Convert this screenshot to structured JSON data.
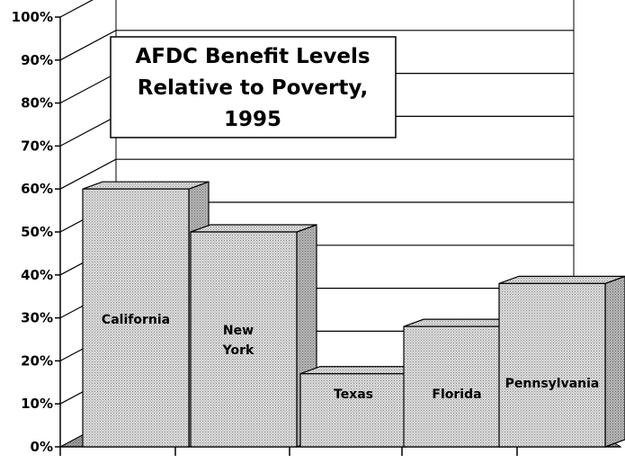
{
  "chart_data": {
    "type": "bar",
    "title_lines": [
      "AFDC Benefit Levels",
      "Relative to Poverty,",
      "1995"
    ],
    "categories": [
      "California",
      "New York",
      "Texas",
      "Florida",
      "Pennsylvania"
    ],
    "category_label_lines": [
      [
        "California"
      ],
      [
        "New",
        "York"
      ],
      [
        "Texas"
      ],
      [
        "Florida"
      ],
      [
        "Pennsylvania"
      ]
    ],
    "values": [
      60,
      50,
      17,
      28,
      38
    ],
    "ylim": [
      0,
      100
    ],
    "yticks": [
      0,
      10,
      20,
      30,
      40,
      50,
      60,
      70,
      80,
      90,
      100
    ],
    "ytick_labels": [
      "0%",
      "10%",
      "20%",
      "30%",
      "40%",
      "50%",
      "60%",
      "70%",
      "80%",
      "90%",
      "100%"
    ],
    "grid": true,
    "three_d": true,
    "colors": {
      "bar_face": "#d6d6d6",
      "bar_side": "#bdbdbd",
      "bar_top": "#e8e8e8",
      "floor": "#a8a8a8",
      "grid": "#000000",
      "title_box": "#ffffff"
    }
  }
}
